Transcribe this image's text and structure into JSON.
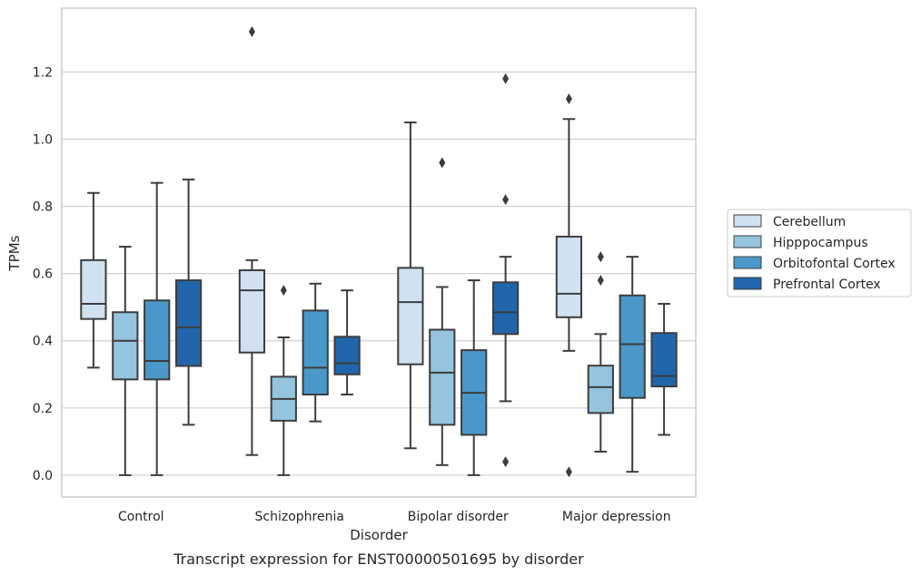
{
  "chart_data": {
    "type": "boxplot",
    "title": "",
    "caption": "Transcript expression for ENST00000501695 by disorder",
    "xlabel": "Disorder",
    "ylabel": "TPMs",
    "ylim": [
      -0.065,
      1.39
    ],
    "yticks": [
      0.0,
      0.2,
      0.4,
      0.6,
      0.8,
      1.0,
      1.2
    ],
    "ytick_labels": [
      "0.0",
      "0.2",
      "0.4",
      "0.6",
      "0.8",
      "1.0",
      "1.2"
    ],
    "grid": true,
    "legend_position": "right",
    "categories": [
      "Control",
      "Schizophrenia",
      "Bipolar disorder",
      "Major depression"
    ],
    "series": [
      {
        "name": "Cerebellum",
        "color": "#d0e1f2",
        "boxes": [
          {
            "whislo": 0.32,
            "q1": 0.465,
            "med": 0.51,
            "q3": 0.64,
            "whishi": 0.84,
            "fliers": []
          },
          {
            "whislo": 0.06,
            "q1": 0.365,
            "med": 0.55,
            "q3": 0.61,
            "whishi": 0.64,
            "fliers": [
              1.32
            ]
          },
          {
            "whislo": 0.08,
            "q1": 0.33,
            "med": 0.515,
            "q3": 0.617,
            "whishi": 1.05,
            "fliers": []
          },
          {
            "whislo": 0.37,
            "q1": 0.47,
            "med": 0.54,
            "q3": 0.71,
            "whishi": 1.06,
            "fliers": [
              1.12,
              0.01
            ]
          }
        ]
      },
      {
        "name": "Hipppocampus",
        "color": "#94c4df",
        "boxes": [
          {
            "whislo": 0.0,
            "q1": 0.285,
            "med": 0.4,
            "q3": 0.485,
            "whishi": 0.68,
            "fliers": []
          },
          {
            "whislo": 0.0,
            "q1": 0.162,
            "med": 0.227,
            "q3": 0.293,
            "whishi": 0.41,
            "fliers": [
              0.55
            ]
          },
          {
            "whislo": 0.03,
            "q1": 0.15,
            "med": 0.305,
            "q3": 0.433,
            "whishi": 0.56,
            "fliers": [
              0.93
            ]
          },
          {
            "whislo": 0.07,
            "q1": 0.185,
            "med": 0.262,
            "q3": 0.326,
            "whishi": 0.42,
            "fliers": [
              0.65,
              0.58
            ]
          }
        ]
      },
      {
        "name": "Orbitofontal Cortex",
        "color": "#4a98c9",
        "boxes": [
          {
            "whislo": 0.0,
            "q1": 0.285,
            "med": 0.34,
            "q3": 0.52,
            "whishi": 0.87,
            "fliers": []
          },
          {
            "whislo": 0.16,
            "q1": 0.24,
            "med": 0.32,
            "q3": 0.49,
            "whishi": 0.57,
            "fliers": []
          },
          {
            "whislo": 0.0,
            "q1": 0.12,
            "med": 0.245,
            "q3": 0.372,
            "whishi": 0.58,
            "fliers": []
          },
          {
            "whislo": 0.01,
            "q1": 0.23,
            "med": 0.39,
            "q3": 0.535,
            "whishi": 0.65,
            "fliers": []
          }
        ]
      },
      {
        "name": "Prefrontal Cortex",
        "color": "#2166ac",
        "boxes": [
          {
            "whislo": 0.15,
            "q1": 0.325,
            "med": 0.44,
            "q3": 0.58,
            "whishi": 0.88,
            "fliers": []
          },
          {
            "whislo": 0.24,
            "q1": 0.3,
            "med": 0.333,
            "q3": 0.412,
            "whishi": 0.55,
            "fliers": []
          },
          {
            "whislo": 0.22,
            "q1": 0.42,
            "med": 0.485,
            "q3": 0.574,
            "whishi": 0.65,
            "fliers": [
              1.18,
              0.82,
              0.04
            ]
          },
          {
            "whislo": 0.12,
            "q1": 0.264,
            "med": 0.295,
            "q3": 0.423,
            "whishi": 0.51,
            "fliers": []
          }
        ]
      }
    ]
  }
}
